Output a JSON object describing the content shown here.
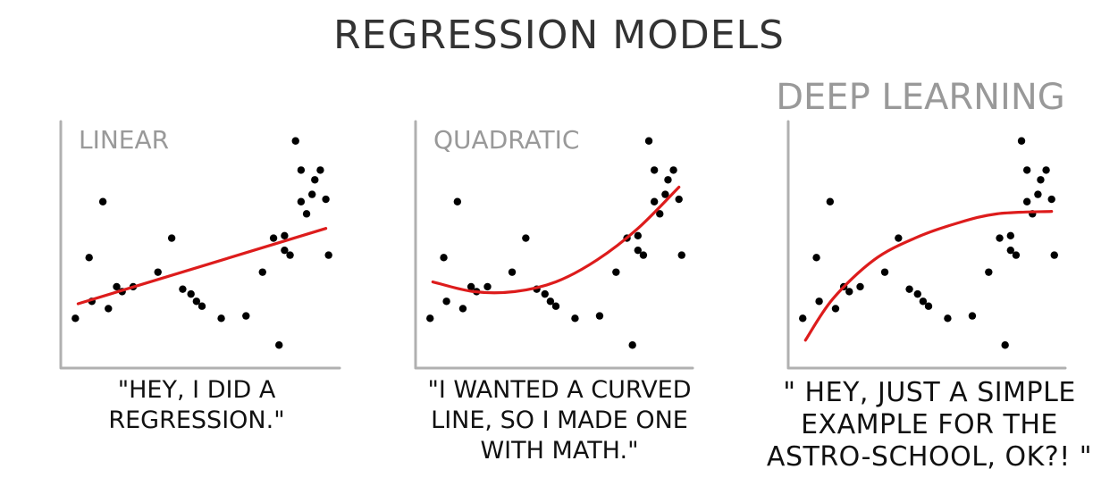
{
  "title": "REGRESSION MODELS",
  "colors": {
    "axis": "#b0b0b0",
    "fit": "#dd1c1c",
    "points": "#000000",
    "label": "#999999"
  },
  "chart_data": [
    {
      "type": "scatter",
      "title": "LINEAR",
      "caption": "\"HEY, I DID A\nREGRESSION.\"",
      "fit": {
        "kind": "linear",
        "x": [
          0.05,
          0.95
        ],
        "y": [
          0.25,
          0.56
        ]
      },
      "xlim": [
        0,
        1
      ],
      "ylim": [
        0,
        1
      ]
    },
    {
      "type": "scatter",
      "title": "QUADRATIC",
      "caption": "\"I WANTED A CURVED\nLINE, SO I MADE ONE\nWITH MATH.\"",
      "fit": {
        "kind": "quadratic",
        "x": [
          0.05,
          0.2,
          0.35,
          0.5,
          0.65,
          0.8,
          0.95
        ],
        "y": [
          0.34,
          0.3,
          0.3,
          0.34,
          0.43,
          0.56,
          0.73
        ]
      },
      "xlim": [
        0,
        1
      ],
      "ylim": [
        0,
        1
      ]
    },
    {
      "type": "scatter",
      "title": "DEEP LEARNING",
      "caption": "\" HEY, JUST A SIMPLE\nEXAMPLE FOR THE\nASTRO-SCHOOL, OK?! \"",
      "fit": {
        "kind": "curve",
        "x": [
          0.05,
          0.15,
          0.3,
          0.45,
          0.6,
          0.75,
          0.95
        ],
        "y": [
          0.1,
          0.27,
          0.43,
          0.52,
          0.58,
          0.62,
          0.63
        ]
      },
      "xlim": [
        0,
        1
      ],
      "ylim": [
        0,
        1
      ]
    }
  ],
  "points": {
    "x": [
      0.04,
      0.09,
      0.1,
      0.14,
      0.16,
      0.19,
      0.21,
      0.25,
      0.34,
      0.39,
      0.43,
      0.46,
      0.48,
      0.5,
      0.57,
      0.66,
      0.72,
      0.76,
      0.8,
      0.8,
      0.82,
      0.84,
      0.86,
      0.86,
      0.88,
      0.9,
      0.91,
      0.93,
      0.95,
      0.96,
      0.78
    ],
    "y": [
      0.19,
      0.44,
      0.26,
      0.67,
      0.23,
      0.32,
      0.3,
      0.32,
      0.38,
      0.52,
      0.31,
      0.29,
      0.26,
      0.24,
      0.19,
      0.2,
      0.38,
      0.52,
      0.47,
      0.53,
      0.45,
      0.92,
      0.8,
      0.67,
      0.62,
      0.7,
      0.76,
      0.8,
      0.68,
      0.45,
      0.08
    ]
  }
}
